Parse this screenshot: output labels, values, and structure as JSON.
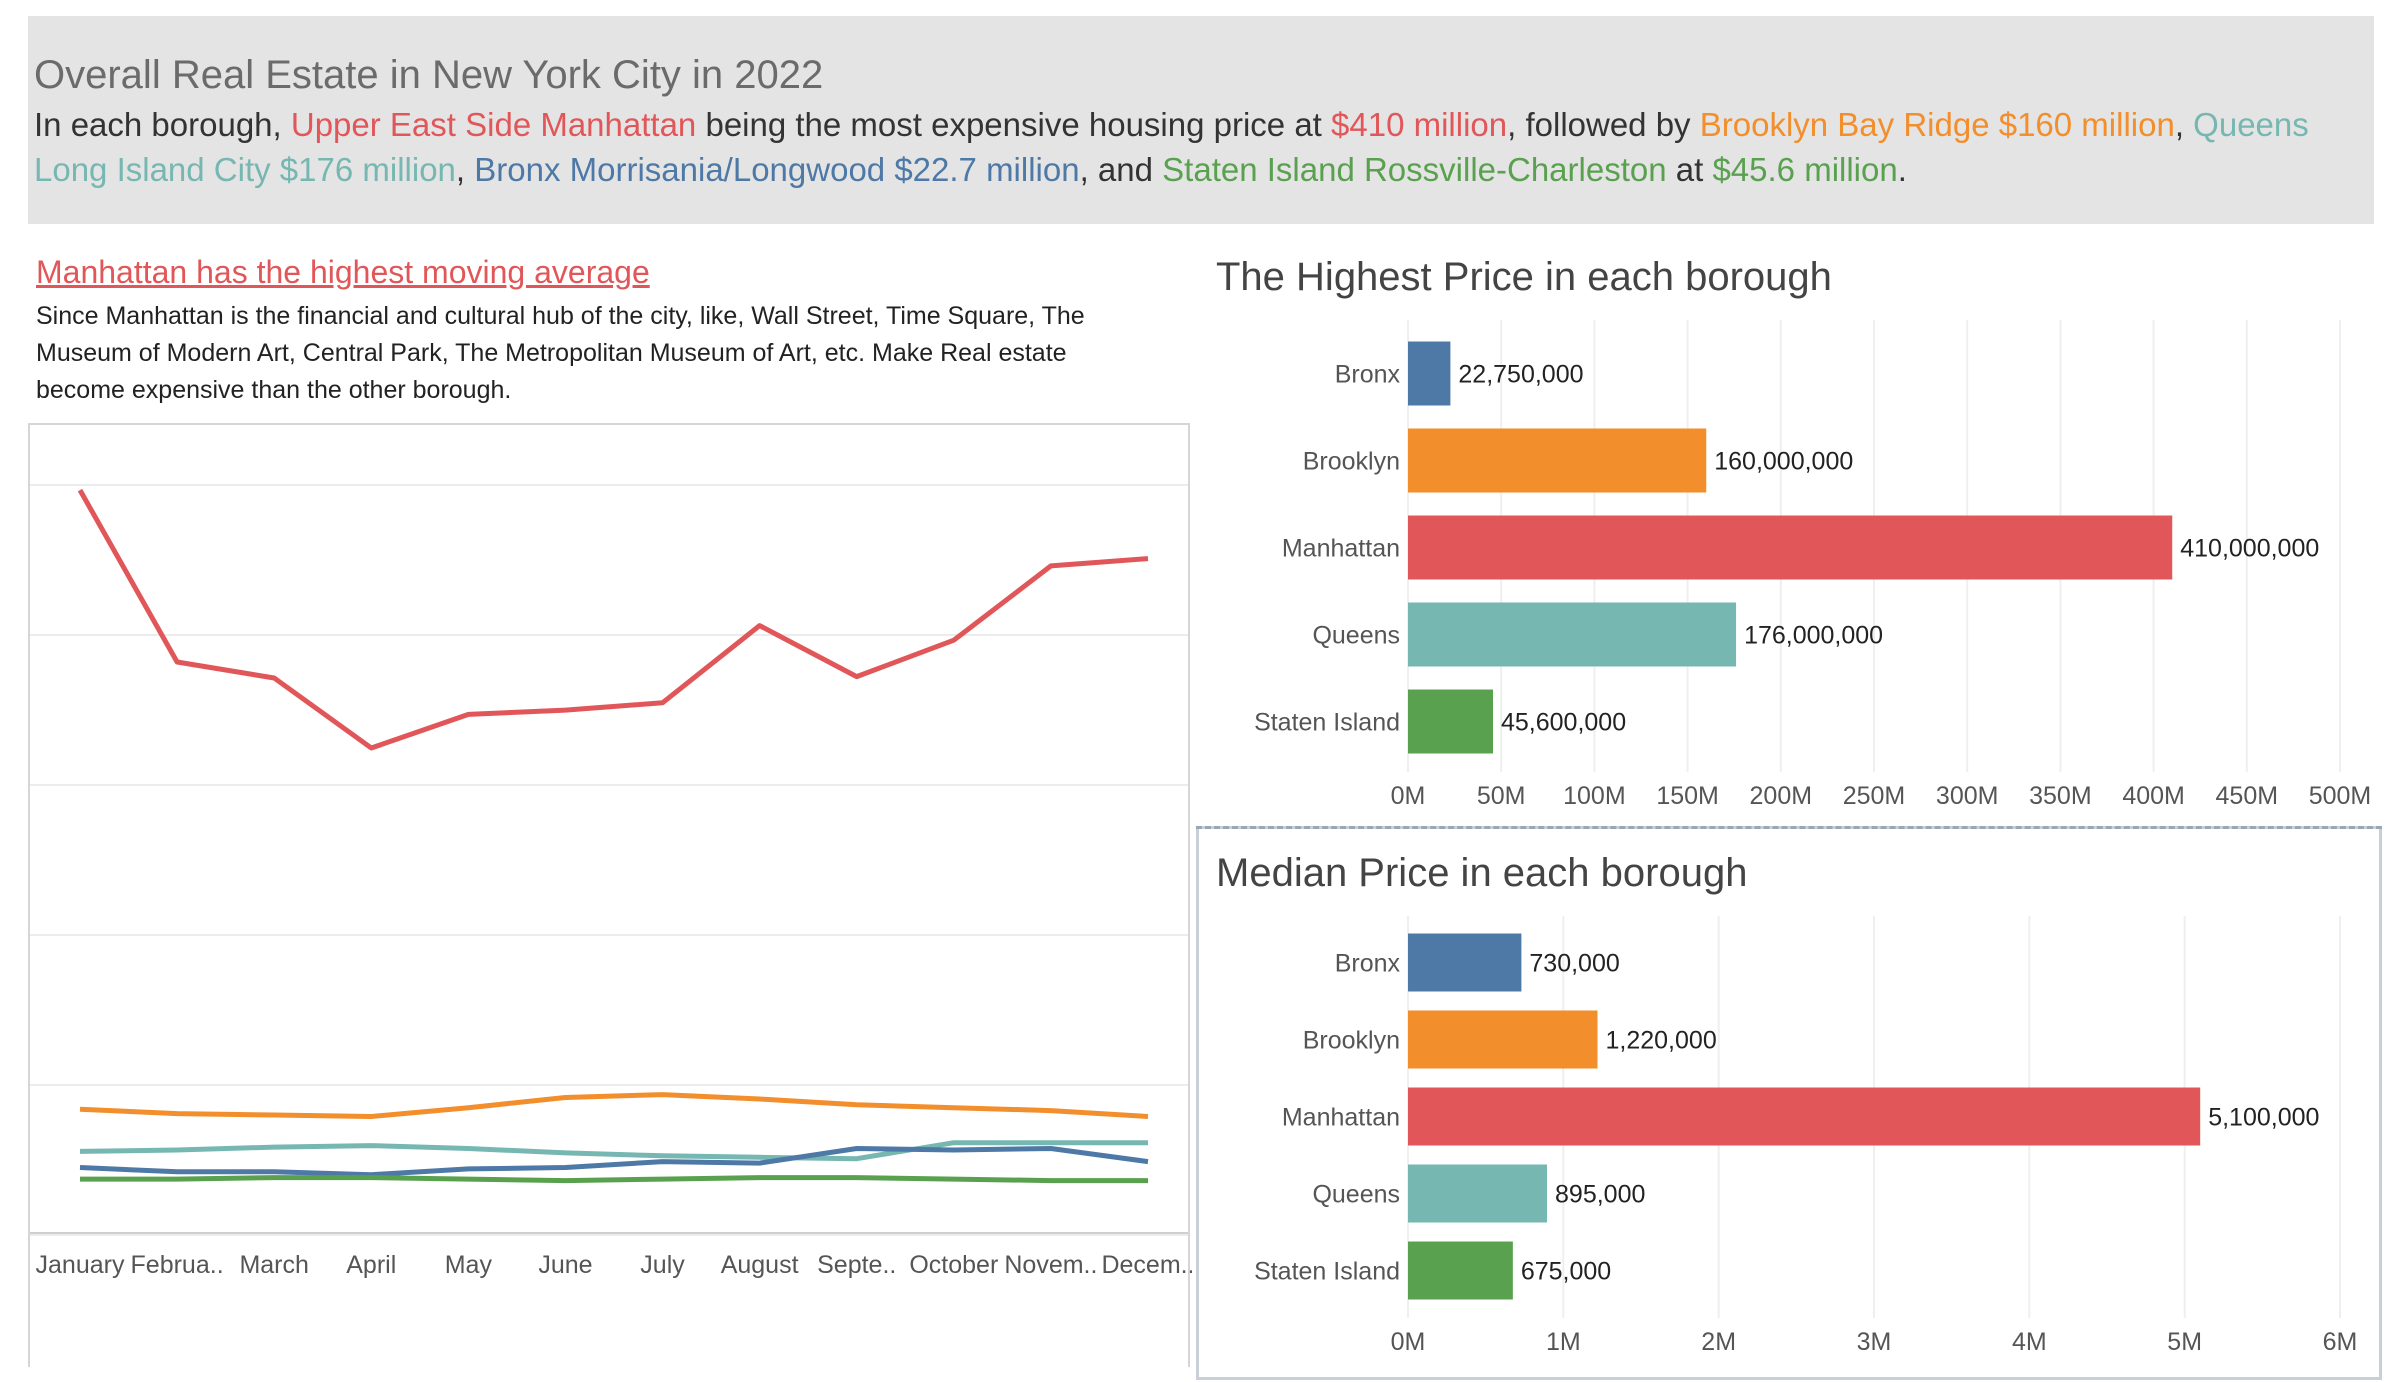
{
  "header": {
    "title": "Overall Real Estate in New York City in 2022",
    "t1": "In each borough, ",
    "t2": "Upper East Side Manhattan",
    "t3": " being the most expensive housing price at ",
    "t4": "$410 million",
    "t5": ", followed by ",
    "t6": "Brooklyn Bay Ridge $160 million",
    "t7": ", ",
    "t8": "Queens Long Island City $176 million",
    "t9": ",  ",
    "t10": "Bronx Morrisania/Longwood $22.7 million",
    "t11": ", and ",
    "t12": "Staten Island Rossville-Charleston",
    "t13": " at ",
    "t14": "$45.6 million",
    "t15": "."
  },
  "insight": {
    "title": "Manhattan has the highest moving average ",
    "body": "Since Manhattan is the financial and cultural hub of the city, like, Wall Street, Time Square, The Museum of Modern Art, Central Park, The Metropolitan Museum of Art, etc. Make Real estate become expensive than the other borough."
  },
  "colors": {
    "Bronx": "#4e79a7",
    "Brooklyn": "#f28e2b",
    "Manhattan": "#e15759",
    "Queens": "#76b7b2",
    "Staten Island": "#59a14f"
  },
  "chart_data": [
    {
      "id": "moving_average",
      "type": "line",
      "title": "",
      "x": [
        "January",
        "Februa..",
        "March",
        "April",
        "May",
        "June",
        "July",
        "August",
        "Septe..",
        "October",
        "Novem..",
        "Decem.."
      ],
      "ylim": [
        0,
        5300000
      ],
      "grid": true,
      "series": [
        {
          "name": "Manhattan",
          "values": [
            5100000,
            3920000,
            3810000,
            3330000,
            3560000,
            3590000,
            3640000,
            4170000,
            3820000,
            4070000,
            4580000,
            4630000
          ]
        },
        {
          "name": "Brooklyn",
          "values": [
            850000,
            820000,
            810000,
            800000,
            860000,
            930000,
            950000,
            920000,
            880000,
            860000,
            840000,
            800000
          ]
        },
        {
          "name": "Queens",
          "values": [
            560000,
            570000,
            590000,
            600000,
            580000,
            550000,
            530000,
            520000,
            510000,
            620000,
            620000,
            620000
          ]
        },
        {
          "name": "Bronx",
          "values": [
            450000,
            420000,
            420000,
            400000,
            440000,
            450000,
            490000,
            480000,
            580000,
            570000,
            580000,
            490000
          ]
        },
        {
          "name": "Staten Island",
          "values": [
            370000,
            370000,
            380000,
            380000,
            370000,
            360000,
            370000,
            380000,
            380000,
            370000,
            360000,
            360000
          ]
        }
      ]
    },
    {
      "id": "highest_price",
      "type": "bar",
      "orientation": "horizontal",
      "title": "The Highest Price in each borough",
      "categories": [
        "Bronx",
        "Brooklyn",
        "Manhattan",
        "Queens",
        "Staten Island"
      ],
      "values": [
        22750000,
        160000000,
        410000000,
        176000000,
        45600000
      ],
      "value_labels": [
        "22,750,000",
        "160,000,000",
        "410,000,000",
        "176,000,000",
        "45,600,000"
      ],
      "xlim": [
        0,
        500000000
      ],
      "ticks": [
        {
          "v": 0,
          "label": "0M"
        },
        {
          "v": 50000000,
          "label": "50M"
        },
        {
          "v": 100000000,
          "label": "100M"
        },
        {
          "v": 150000000,
          "label": "150M"
        },
        {
          "v": 200000000,
          "label": "200M"
        },
        {
          "v": 250000000,
          "label": "250M"
        },
        {
          "v": 300000000,
          "label": "300M"
        },
        {
          "v": 350000000,
          "label": "350M"
        },
        {
          "v": 400000000,
          "label": "400M"
        },
        {
          "v": 450000000,
          "label": "450M"
        },
        {
          "v": 500000000,
          "label": "500M"
        }
      ]
    },
    {
      "id": "median_price",
      "type": "bar",
      "orientation": "horizontal",
      "title": "Median Price in each borough",
      "categories": [
        "Bronx",
        "Brooklyn",
        "Manhattan",
        "Queens",
        "Staten Island"
      ],
      "values": [
        730000,
        1220000,
        5100000,
        895000,
        675000
      ],
      "value_labels": [
        "730,000",
        "1,220,000",
        "5,100,000",
        "895,000",
        "675,000"
      ],
      "xlim": [
        0,
        6000000
      ],
      "ticks": [
        {
          "v": 0,
          "label": "0M"
        },
        {
          "v": 1000000,
          "label": "1M"
        },
        {
          "v": 2000000,
          "label": "2M"
        },
        {
          "v": 3000000,
          "label": "3M"
        },
        {
          "v": 4000000,
          "label": "4M"
        },
        {
          "v": 5000000,
          "label": "5M"
        },
        {
          "v": 6000000,
          "label": "6M"
        }
      ]
    }
  ]
}
